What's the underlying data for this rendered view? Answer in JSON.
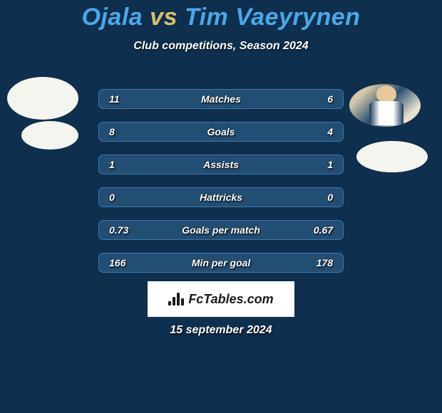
{
  "background_color": "#0e2f4e",
  "title": {
    "player1": "Ojala",
    "vs": "vs",
    "player2": "Tim Vaeyrynen",
    "player1_color": "#4aa8e8",
    "vs_color": "#d8c068",
    "player2_color": "#4aa8e8"
  },
  "subtitle": "Club competitions, Season 2024",
  "stats": {
    "row_bg_color": "#234e74",
    "row_border_color": "#3d77a8",
    "rows": [
      {
        "left": "11",
        "label": "Matches",
        "right": "6"
      },
      {
        "left": "8",
        "label": "Goals",
        "right": "4"
      },
      {
        "left": "1",
        "label": "Assists",
        "right": "1"
      },
      {
        "left": "0",
        "label": "Hattricks",
        "right": "0"
      },
      {
        "left": "0.73",
        "label": "Goals per match",
        "right": "0.67"
      },
      {
        "left": "166",
        "label": "Min per goal",
        "right": "178"
      }
    ]
  },
  "footer": {
    "logo_text": "FcTables.com",
    "date": "15 september 2024"
  }
}
